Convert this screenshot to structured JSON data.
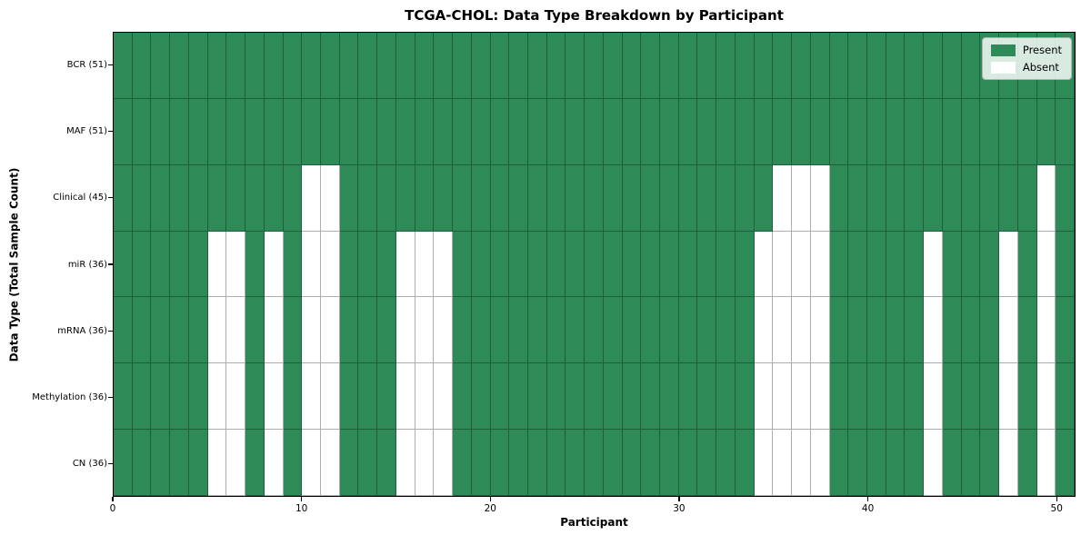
{
  "chart_data": {
    "type": "heatmap",
    "title": "TCGA-CHOL: Data Type Breakdown by Participant",
    "xlabel": "Participant",
    "ylabel": "Data Type (Total Sample Count)",
    "x_ticks": [
      0,
      10,
      20,
      30,
      40,
      50
    ],
    "n_participants": 51,
    "x_range": [
      0,
      51
    ],
    "grid": true,
    "legend_position": "upper right",
    "legend": [
      {
        "label": "Present",
        "color": "#2e8b57"
      },
      {
        "label": "Absent",
        "color": "#ffffff"
      }
    ],
    "colors": {
      "present": "#2e8b57",
      "absent": "#ffffff",
      "gridline": "rgba(0,0,0,0.32)"
    },
    "rows": [
      {
        "label": "BCR (51)",
        "total_present": 51,
        "absent_participants": []
      },
      {
        "label": "MAF (51)",
        "total_present": 51,
        "absent_participants": []
      },
      {
        "label": "Clinical (45)",
        "total_present": 45,
        "absent_participants": [
          10,
          11,
          35,
          36,
          37,
          49
        ]
      },
      {
        "label": "miR (36)",
        "total_present": 36,
        "absent_participants": [
          5,
          6,
          8,
          10,
          11,
          15,
          16,
          17,
          34,
          35,
          36,
          37,
          43,
          47,
          49
        ]
      },
      {
        "label": "mRNA (36)",
        "total_present": 36,
        "absent_participants": [
          5,
          6,
          8,
          10,
          11,
          15,
          16,
          17,
          34,
          35,
          36,
          37,
          43,
          47,
          49
        ]
      },
      {
        "label": "Methylation (36)",
        "total_present": 36,
        "absent_participants": [
          5,
          6,
          8,
          10,
          11,
          15,
          16,
          17,
          34,
          35,
          36,
          37,
          43,
          47,
          49
        ]
      },
      {
        "label": "CN (36)",
        "total_present": 36,
        "absent_participants": [
          5,
          6,
          8,
          10,
          11,
          15,
          16,
          17,
          34,
          35,
          36,
          37,
          43,
          47,
          49
        ]
      }
    ]
  }
}
